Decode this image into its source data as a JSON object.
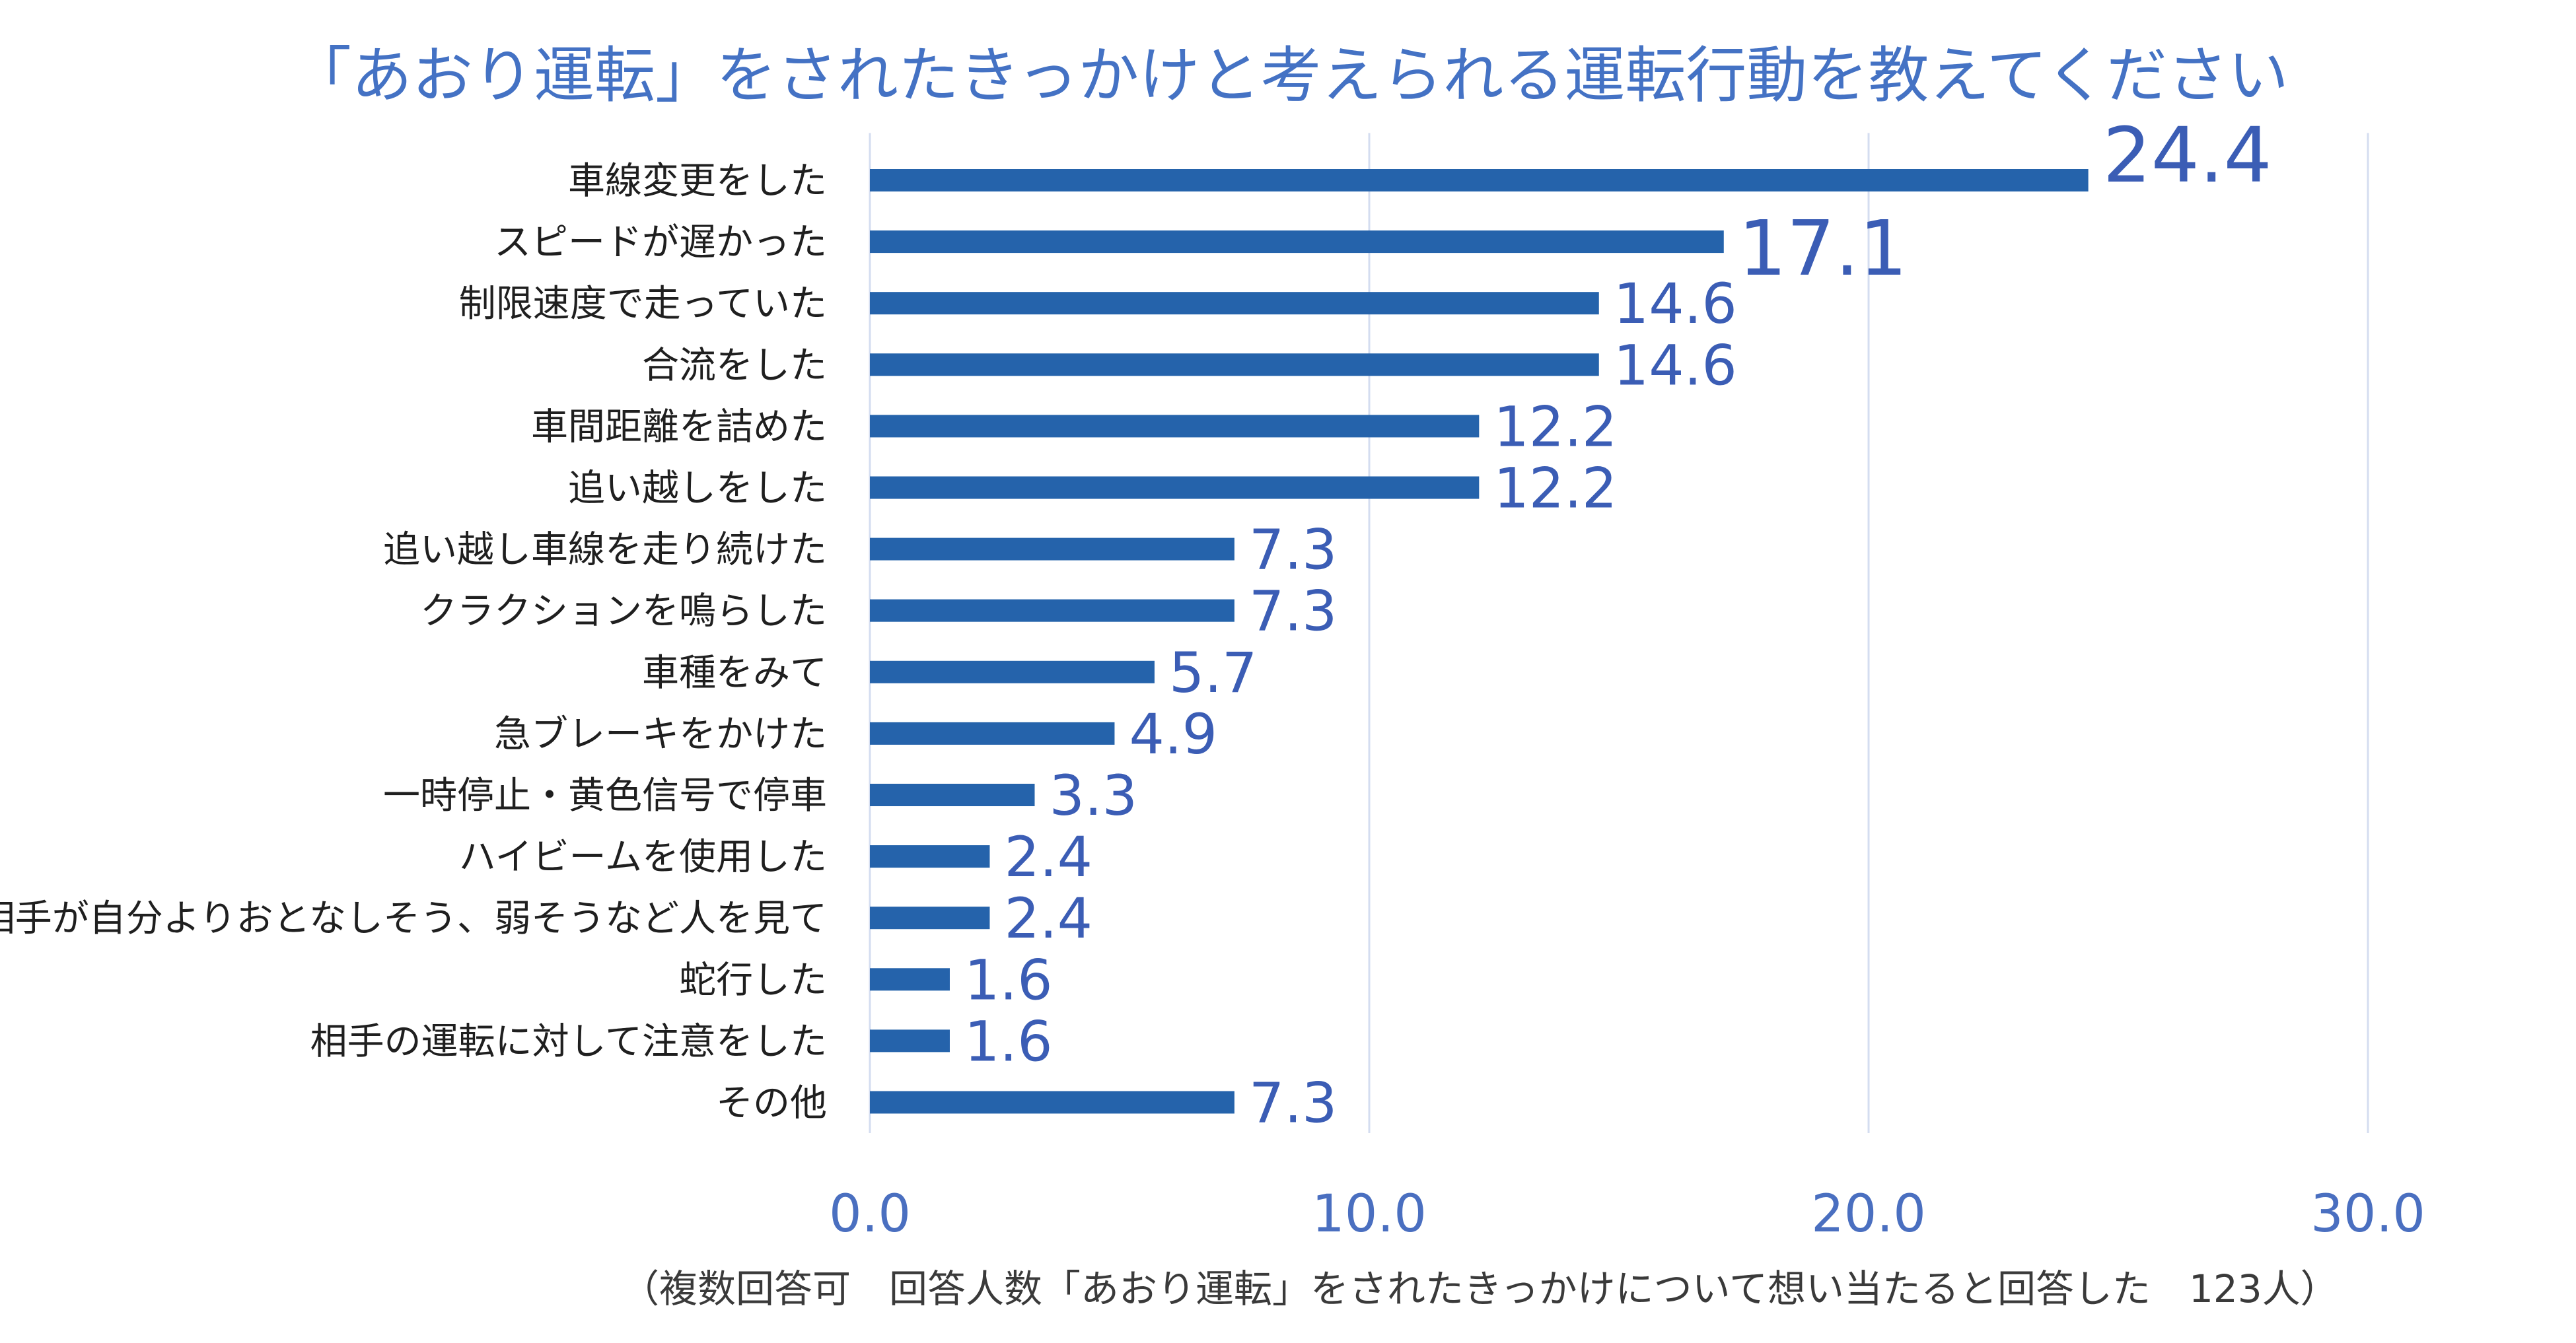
{
  "chart_data": {
    "type": "bar",
    "orientation": "horizontal",
    "title": "「あおり運転」をされたきっかけと考えられる運転行動を教えてください",
    "footnote": "（複数回答可　回答人数「あおり運転」をされたきっかけについて想い当たると回答した　123人）",
    "xlabel": "",
    "ylabel": "",
    "xlim": [
      0,
      30
    ],
    "x_ticks": [
      "0.0",
      "10.0",
      "20.0",
      "30.0"
    ],
    "grid": true,
    "categories": [
      "車線変更をした",
      "スピードが遅かった",
      "制限速度で走っていた",
      "合流をした",
      "車間距離を詰めた",
      "追い越しをした",
      "追い越し車線を走り続けた",
      "クラクションを鳴らした",
      "車種をみて",
      "急ブレーキをかけた",
      "一時停止・黄色信号で停車",
      "ハイビームを使用した",
      "相手が自分よりおとなしそう、弱そうなど人を見て",
      "蛇行した",
      "相手の運転に対して注意をした",
      "その他"
    ],
    "values": [
      24.4,
      17.1,
      14.6,
      14.6,
      12.2,
      12.2,
      7.3,
      7.3,
      5.7,
      4.9,
      3.3,
      2.4,
      2.4,
      1.6,
      1.6,
      7.3
    ],
    "value_labels": [
      "24.4",
      "17.1",
      "14.6",
      "14.6",
      "12.2",
      "12.2",
      "7.3",
      "7.3",
      "5.7",
      "4.9",
      "3.3",
      "2.4",
      "2.4",
      "1.6",
      "1.6",
      "7.3"
    ],
    "colors": {
      "bar": "#2563ab",
      "title": "#4472c4",
      "value_label": "#3b5db5",
      "axis_tick": "#4a6fc0",
      "category_label": "#1f1f1f",
      "grid": "#d4ddf0"
    }
  }
}
